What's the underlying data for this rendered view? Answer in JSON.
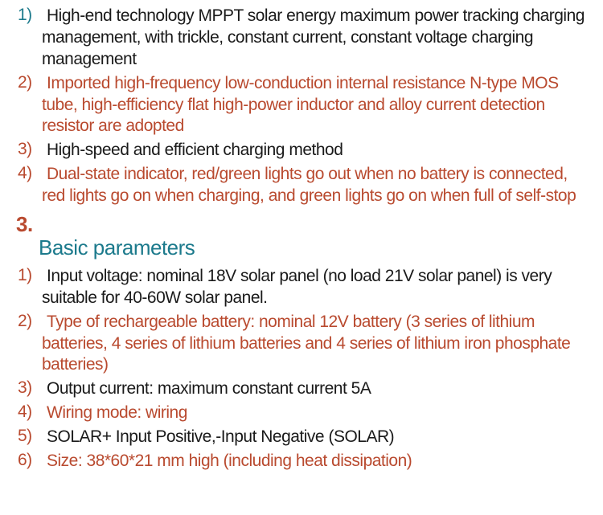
{
  "colors": {
    "black": "#1a1a1a",
    "rust": "#b94a2f",
    "teal": "#1c7a8c"
  },
  "section2_items": [
    {
      "num": "1)",
      "text": "High-end technology MPPT solar energy maximum power tracking charging management, with trickle, constant current, constant voltage charging management",
      "num_color": "teal",
      "text_color": "black",
      "indent": true
    },
    {
      "num": "2)",
      "text": "Imported high-frequency low-conduction internal resistance N-type MOS tube, high-efficiency flat high-power inductor and alloy current detection resistor are adopted",
      "num_color": "rust",
      "text_color": "rust",
      "indent": true
    },
    {
      "num": "3)",
      "text": "High-speed and efficient charging method",
      "num_color": "rust",
      "text_color": "black",
      "indent": true
    },
    {
      "num": "4)",
      "text": "Dual-state indicator, red/green lights go out when no battery is connected, red lights go on when charging, and green lights go on when full of self-stop",
      "num_color": "rust",
      "text_color": "rust",
      "indent": true
    }
  ],
  "section3": {
    "number": "3.",
    "title": "Basic parameters",
    "number_color": "rust",
    "title_color": "teal"
  },
  "section3_items": [
    {
      "num": "1)",
      "text": "Input voltage: nominal 18V solar panel (no load 21V solar panel) is very suitable for 40-60W solar panel.",
      "num_color": "rust",
      "text_color": "black",
      "indent": true
    },
    {
      "num": "2)",
      "text": "Type of rechargeable battery: nominal 12V battery (3 series of lithium batteries, 4 series of lithium batteries and 4 series of lithium iron phosphate batteries)",
      "num_color": "rust",
      "text_color": "rust",
      "indent": true
    },
    {
      "num": "3)",
      "text": "Output current: maximum constant current 5A",
      "num_color": "rust",
      "text_color": "black",
      "indent": true
    },
    {
      "num": "4)",
      "text": "Wiring mode: wiring",
      "num_color": "rust",
      "text_color": "rust",
      "indent": true
    },
    {
      "num": "5)",
      "text": "SOLAR+ Input Positive,-Input Negative (SOLAR)",
      "num_color": "rust",
      "text_color": "black",
      "indent": true
    },
    {
      "num": "6)",
      "text": "Size: 38*60*21 mm high (including heat dissipation)",
      "num_color": "rust",
      "text_color": "rust",
      "indent": true
    }
  ]
}
